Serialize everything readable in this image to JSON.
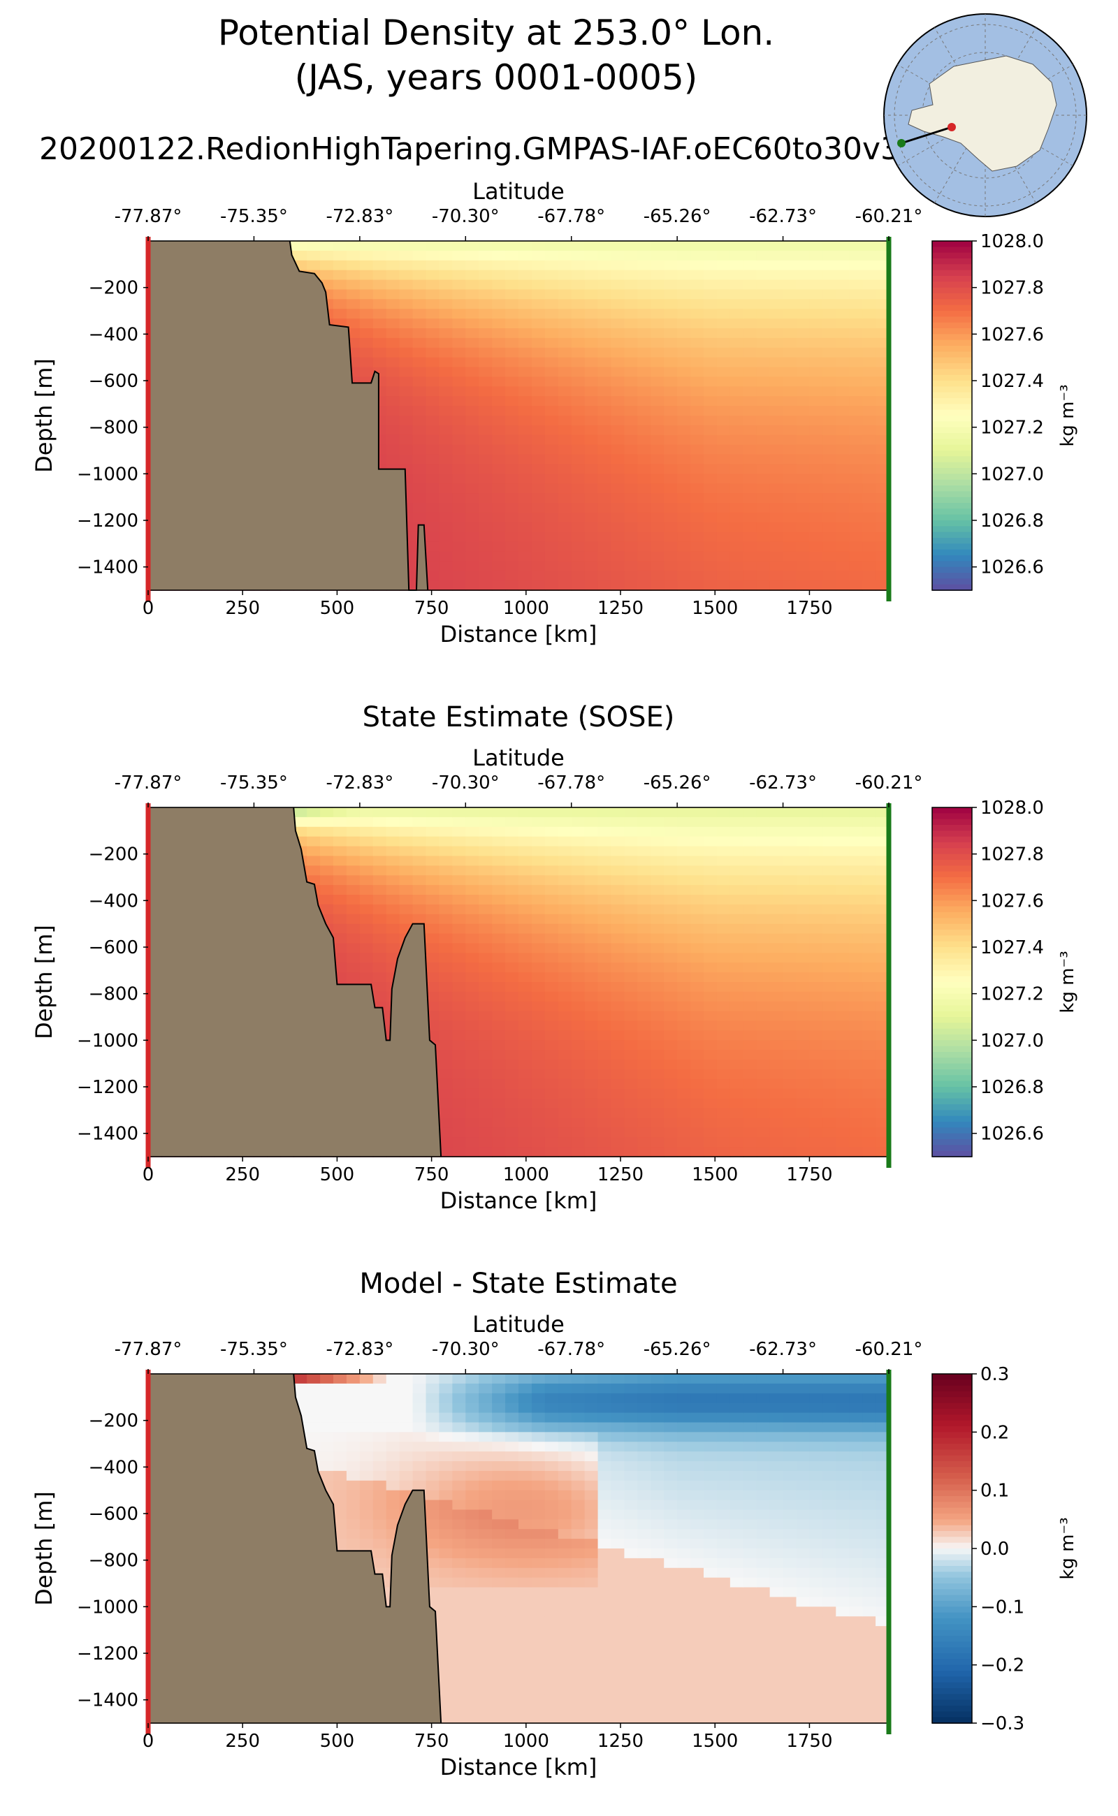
{
  "figure": {
    "title_line1": "Potential Density at 253.0° Lon.",
    "title_line2": "(JAS, years 0001-0005)",
    "subtitle": "20200122.RedionHighTapering.GMPAS-IAF.oEC60to30v3"
  },
  "colors": {
    "land": "#8e7d65",
    "start_marker": "#d62728",
    "end_marker": "#1a7a1a",
    "globe_ocean": "#a3bfe3",
    "globe_land": "#f2efe0"
  },
  "chart_data": [
    {
      "type": "heatmap",
      "name": "model",
      "title": "",
      "xlabel": "Distance [km]",
      "ylabel": "Depth [m]",
      "top_xlabel": "Latitude",
      "xlim": [
        0,
        1960
      ],
      "ylim": [
        -1500,
        0
      ],
      "xticks": [
        0,
        250,
        500,
        750,
        1000,
        1250,
        1500,
        1750
      ],
      "xtick_labels": [
        "0",
        "250",
        "500",
        "750",
        "1000",
        "1250",
        "1500",
        "1750"
      ],
      "yticks": [
        -200,
        -400,
        -600,
        -800,
        -1000,
        -1200,
        -1400
      ],
      "ytick_labels": [
        "−200",
        "−400",
        "−600",
        "−800",
        "−1000",
        "−1200",
        "−1400"
      ],
      "lat_ticks": [
        0,
        280,
        560,
        840,
        1120,
        1400,
        1680,
        1960
      ],
      "lat_labels": [
        "-77.87°",
        "-75.35°",
        "-72.83°",
        "-70.30°",
        "-67.78°",
        "-65.26°",
        "-62.73°",
        "-60.21°"
      ],
      "colorbar": {
        "cmap": "spectral",
        "range": [
          1026.5,
          1028.0
        ],
        "ticks": [
          1028.0,
          1027.8,
          1027.6,
          1027.4,
          1027.2,
          1027.0,
          1026.8,
          1026.6
        ],
        "tick_labels": [
          "1028.0",
          "1027.8",
          "1027.6",
          "1027.4",
          "1027.2",
          "1027.0",
          "1026.8",
          "1026.6"
        ],
        "label": "kg m⁻³"
      },
      "bathymetry": [
        [
          0,
          0
        ],
        [
          375,
          0
        ],
        [
          380,
          -60
        ],
        [
          400,
          -130
        ],
        [
          440,
          -140
        ],
        [
          460,
          -180
        ],
        [
          470,
          -220
        ],
        [
          480,
          -360
        ],
        [
          530,
          -370
        ],
        [
          540,
          -610
        ],
        [
          590,
          -610
        ],
        [
          600,
          -560
        ],
        [
          610,
          -570
        ],
        [
          610,
          -980
        ],
        [
          680,
          -980
        ],
        [
          690,
          -1500
        ],
        [
          710,
          -1500
        ],
        [
          715,
          -1220
        ],
        [
          730,
          -1220
        ],
        [
          740,
          -1500
        ]
      ]
    },
    {
      "type": "heatmap",
      "name": "sose",
      "title": "State Estimate (SOSE)",
      "xlabel": "Distance [km]",
      "ylabel": "Depth [m]",
      "top_xlabel": "Latitude",
      "xlim": [
        0,
        1960
      ],
      "ylim": [
        -1500,
        0
      ],
      "xticks": [
        0,
        250,
        500,
        750,
        1000,
        1250,
        1500,
        1750
      ],
      "xtick_labels": [
        "0",
        "250",
        "500",
        "750",
        "1000",
        "1250",
        "1500",
        "1750"
      ],
      "yticks": [
        -200,
        -400,
        -600,
        -800,
        -1000,
        -1200,
        -1400
      ],
      "ytick_labels": [
        "−200",
        "−400",
        "−600",
        "−800",
        "−1000",
        "−1200",
        "−1400"
      ],
      "lat_ticks": [
        0,
        280,
        560,
        840,
        1120,
        1400,
        1680,
        1960
      ],
      "lat_labels": [
        "-77.87°",
        "-75.35°",
        "-72.83°",
        "-70.30°",
        "-67.78°",
        "-65.26°",
        "-62.73°",
        "-60.21°"
      ],
      "colorbar": {
        "cmap": "spectral",
        "range": [
          1026.5,
          1028.0
        ],
        "ticks": [
          1028.0,
          1027.8,
          1027.6,
          1027.4,
          1027.2,
          1027.0,
          1026.8,
          1026.6
        ],
        "tick_labels": [
          "1028.0",
          "1027.8",
          "1027.6",
          "1027.4",
          "1027.2",
          "1027.0",
          "1026.8",
          "1026.6"
        ],
        "label": "kg m⁻³"
      },
      "bathymetry": [
        [
          0,
          0
        ],
        [
          385,
          0
        ],
        [
          390,
          -100
        ],
        [
          405,
          -180
        ],
        [
          420,
          -320
        ],
        [
          440,
          -330
        ],
        [
          450,
          -420
        ],
        [
          470,
          -500
        ],
        [
          490,
          -560
        ],
        [
          500,
          -760
        ],
        [
          590,
          -760
        ],
        [
          600,
          -860
        ],
        [
          620,
          -860
        ],
        [
          630,
          -1000
        ],
        [
          640,
          -1000
        ],
        [
          645,
          -780
        ],
        [
          660,
          -650
        ],
        [
          680,
          -560
        ],
        [
          700,
          -500
        ],
        [
          730,
          -500
        ],
        [
          745,
          -1000
        ],
        [
          760,
          -1020
        ],
        [
          775,
          -1500
        ]
      ]
    },
    {
      "type": "heatmap",
      "name": "difference",
      "title": "Model - State Estimate",
      "xlabel": "Distance [km]",
      "ylabel": "Depth [m]",
      "top_xlabel": "Latitude",
      "xlim": [
        0,
        1960
      ],
      "ylim": [
        -1500,
        0
      ],
      "xticks": [
        0,
        250,
        500,
        750,
        1000,
        1250,
        1500,
        1750
      ],
      "xtick_labels": [
        "0",
        "250",
        "500",
        "750",
        "1000",
        "1250",
        "1500",
        "1750"
      ],
      "yticks": [
        -200,
        -400,
        -600,
        -800,
        -1000,
        -1200,
        -1400
      ],
      "ytick_labels": [
        "−200",
        "−400",
        "−600",
        "−800",
        "−1000",
        "−1200",
        "−1400"
      ],
      "lat_ticks": [
        0,
        280,
        560,
        840,
        1120,
        1400,
        1680,
        1960
      ],
      "lat_labels": [
        "-77.87°",
        "-75.35°",
        "-72.83°",
        "-70.30°",
        "-67.78°",
        "-65.26°",
        "-62.73°",
        "-60.21°"
      ],
      "colorbar": {
        "cmap": "diverging",
        "range": [
          -0.3,
          0.3
        ],
        "ticks": [
          0.3,
          0.2,
          0.1,
          0.0,
          -0.1,
          -0.2,
          -0.3
        ],
        "tick_labels": [
          "0.3",
          "0.2",
          "0.1",
          "0.0",
          "−0.1",
          "−0.2",
          "−0.3"
        ],
        "label": "kg m⁻³"
      },
      "bathymetry": [
        [
          0,
          0
        ],
        [
          385,
          0
        ],
        [
          390,
          -100
        ],
        [
          405,
          -180
        ],
        [
          420,
          -320
        ],
        [
          440,
          -330
        ],
        [
          450,
          -420
        ],
        [
          470,
          -500
        ],
        [
          490,
          -560
        ],
        [
          500,
          -760
        ],
        [
          590,
          -760
        ],
        [
          600,
          -860
        ],
        [
          620,
          -860
        ],
        [
          630,
          -1000
        ],
        [
          640,
          -1000
        ],
        [
          645,
          -780
        ],
        [
          660,
          -650
        ],
        [
          680,
          -560
        ],
        [
          700,
          -500
        ],
        [
          730,
          -500
        ],
        [
          745,
          -1000
        ],
        [
          760,
          -1020
        ],
        [
          775,
          -1500
        ]
      ]
    }
  ]
}
